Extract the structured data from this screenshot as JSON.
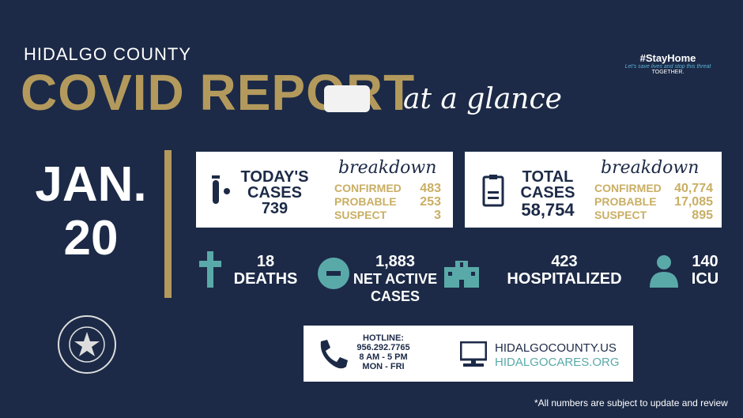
{
  "header": {
    "county": "HIDALGO COUNTY",
    "title": "COVID REPORT",
    "subtitle": "at a glance"
  },
  "stay_home": {
    "hashtag": "#StayHome",
    "tagline": "Let's save lives and stop this threat",
    "together": "TOGETHER."
  },
  "date": {
    "month": "JAN.",
    "day": "20"
  },
  "today": {
    "label1": "TODAY'S",
    "label2": "CASES",
    "total": "739",
    "breakdown": "breakdown",
    "rows": [
      {
        "label": "CONFIRMED",
        "value": "483"
      },
      {
        "label": "PROBABLE",
        "value": "253"
      },
      {
        "label": "SUSPECT",
        "value": "3"
      }
    ]
  },
  "total": {
    "label1": "TOTAL",
    "label2": "CASES",
    "total": "58,754",
    "breakdown": "breakdown",
    "rows": [
      {
        "label": "CONFIRMED",
        "value": "40,774"
      },
      {
        "label": "PROBABLE",
        "value": "17,085"
      },
      {
        "label": "SUSPECT",
        "value": "895"
      }
    ]
  },
  "stats": {
    "deaths": {
      "value": "18",
      "label": "DEATHS"
    },
    "active": {
      "value": "1,883",
      "label1": "NET ACTIVE",
      "label2": "CASES"
    },
    "hosp": {
      "value": "423",
      "label": "HOSPITALIZED"
    },
    "icu": {
      "value": "140",
      "label": "ICU"
    }
  },
  "contact": {
    "hotline": "HOTLINE:",
    "phone": "956.292.7765",
    "hours": "8 AM - 5 PM",
    "days": "MON - FRI",
    "site1": "HIDALGOCOUNTY.US",
    "site2": "HIDALGOCARES.ORG"
  },
  "seal": {
    "text": "THE COUNTY OF HIDALGO TEXAS"
  },
  "footnote": "*All numbers are subject to update and review",
  "colors": {
    "background": "#1c2a47",
    "gold": "#b39a5c",
    "teal": "#5aa9a9"
  }
}
